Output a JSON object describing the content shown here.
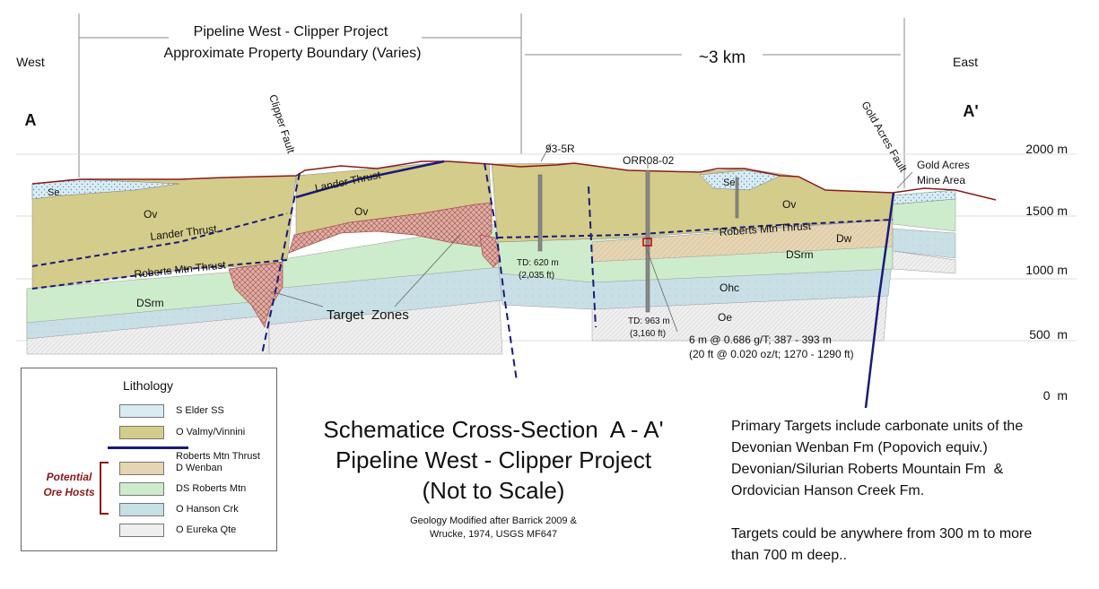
{
  "header": {
    "project_title": "Pipeline West - Clipper Project",
    "boundary": "Approximate Property Boundary  (Varies)",
    "distance": "~3 km",
    "west": "West",
    "east": "East",
    "a_left": "A",
    "a_right": "A'"
  },
  "elevations": [
    "2000 m",
    "1500 m",
    "1000 m",
    "500  m",
    "0  m"
  ],
  "faults": {
    "clipper": "Clipper Fault",
    "gold_acres": "Gold Acres Fault"
  },
  "units": {
    "se_left": "Se",
    "se_right": "Se",
    "ov_left": "Ov",
    "ov_mid": "Ov",
    "ov_right": "Ov",
    "dsrm_left": "DSrm",
    "dsrm_right": "DSrm",
    "dw": "Dw",
    "ohc": "Ohc",
    "oe": "Oe"
  },
  "thrusts": {
    "lander_left": "Lander Thrust",
    "lander_mid": "Lander Thrust",
    "rmt_left": "Roberts Mtn Thrust",
    "rmt_right": "Roberts Mtn Thrust"
  },
  "target_zones": "Target  Zones",
  "gold_acres_mine": [
    "Gold Acres",
    "Mine Area"
  ],
  "drillholes": {
    "h1_name": "93-5R",
    "h1_td": [
      "TD: 620 m",
      "(2,035 ft)"
    ],
    "h2_name": "ORR08-02",
    "h2_td": [
      "TD: 963 m",
      "(3,160 ft)"
    ],
    "intercept": [
      "6 m @ 0.686 g/T; 387 - 393 m",
      "(20 ft @ 0.020 oz/t; 1270 - 1290 ft)"
    ]
  },
  "legend": {
    "title": "Lithology",
    "items": [
      {
        "label": "S Elder SS",
        "color": "#d9ecf4"
      },
      {
        "label": "O Valmy/Vinnini",
        "color": "#d4cc8a"
      },
      {
        "label": "Roberts Mtn Thrust",
        "color": "#1a1a7a"
      },
      {
        "label": "D Wenban",
        "color": "#e6d5b3"
      },
      {
        "label": "DS Roberts Mtn",
        "color": "#cdeccc"
      },
      {
        "label": "O Hanson Crk",
        "color": "#c8dfe6"
      },
      {
        "label": "O Eureka Qte",
        "color": "#efefef"
      }
    ],
    "potential": [
      "Potential",
      "Ore Hosts"
    ]
  },
  "title_block": {
    "lines": [
      "Schematice Cross-Section  A - A'",
      "Pipeline West - Clipper Project",
      "(Not to Scale)"
    ],
    "credit": [
      "Geology Modified after Barrick 2009 &",
      "Wrucke, 1974, USGS MF647"
    ]
  },
  "notes": {
    "para1": [
      "Primary Targets include carbonate units of the",
      "Devonian Wenban Fm (Popovich equiv.)",
      "Devonian/Silurian Roberts Mountain Fm  &",
      "Ordovician Hanson Creek Fm."
    ],
    "para2": [
      "Targets could be anywhere from 300 m to more",
      "than 700 m deep.."
    ]
  },
  "colors": {
    "valmy": "#d4cc8a",
    "elder": "#d9ecf4",
    "wenban": "#e6d5b3",
    "robertsmtn": "#cdeccc",
    "hanson": "#c8dfe6",
    "eureka": "#efefef",
    "thrust": "#1a1a7a",
    "fault_dash": "#1a1a7a",
    "target": "#d8a9a4",
    "topo": "#8b1a1a",
    "potential_text": "#8b1a1a"
  }
}
